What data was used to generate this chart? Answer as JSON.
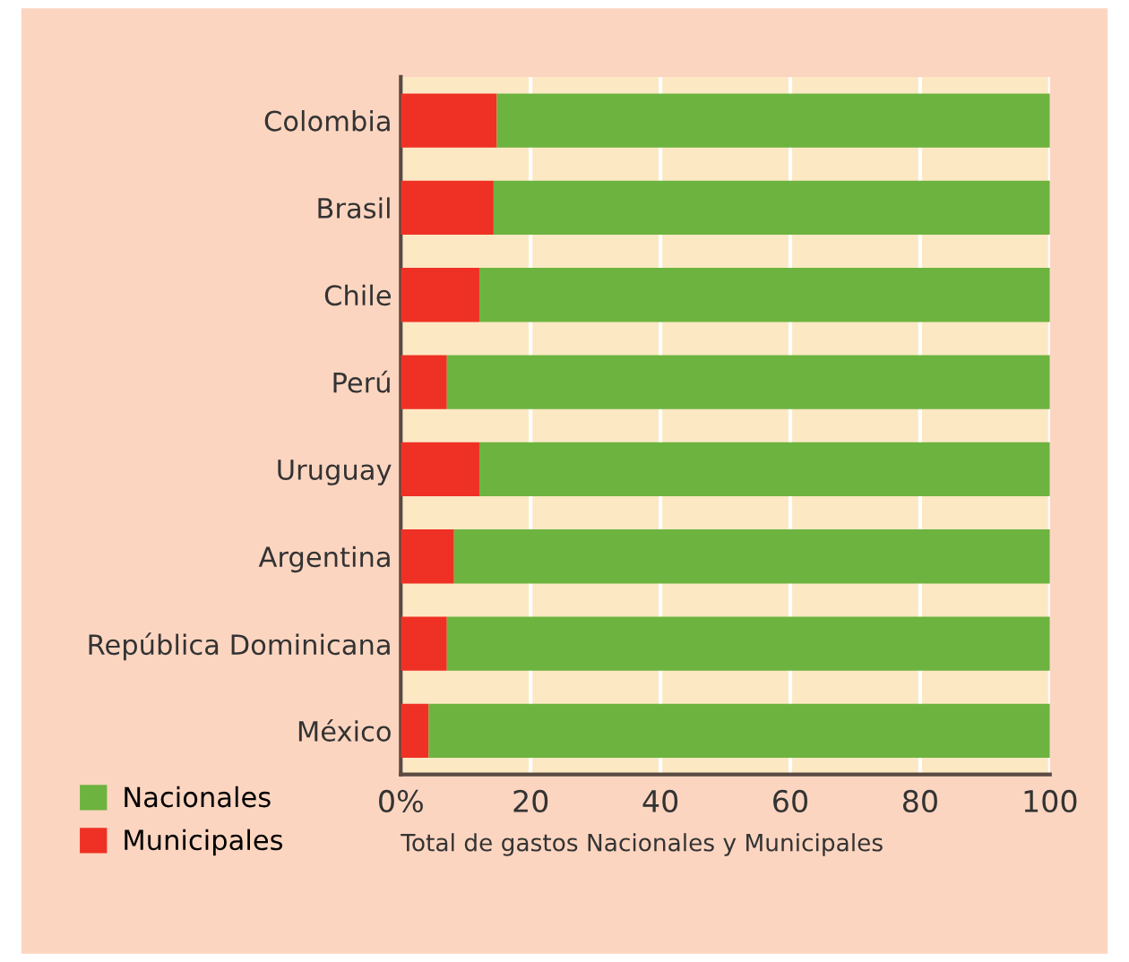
{
  "chart_data": {
    "type": "bar",
    "orientation": "horizontal",
    "stacked": true,
    "xlabel": "Total de gastos Nacionales y Municipales",
    "categories": [
      "Colombia",
      "Brasil",
      "Chile",
      "Perú",
      "Uruguay",
      "Argentina",
      "República Dominicana",
      "México"
    ],
    "series": [
      {
        "name": "Municipales",
        "color": "#ee3124",
        "values": [
          14.8,
          14.3,
          12.1,
          7.1,
          12.1,
          8.2,
          7.1,
          4.3
        ]
      },
      {
        "name": "Nacionales",
        "color": "#6db33f",
        "values": [
          85.2,
          85.7,
          87.9,
          92.9,
          87.9,
          91.8,
          92.9,
          95.7
        ]
      }
    ],
    "xlim": [
      0,
      100
    ],
    "xticks": [
      {
        "value": 0,
        "label": "0%"
      },
      20,
      40,
      60,
      80,
      100
    ],
    "bands": [
      {
        "axis": "x",
        "from": 0,
        "to": 100,
        "color": "#fde8c4"
      }
    ],
    "grid": "x",
    "legend": "bottom left"
  }
}
